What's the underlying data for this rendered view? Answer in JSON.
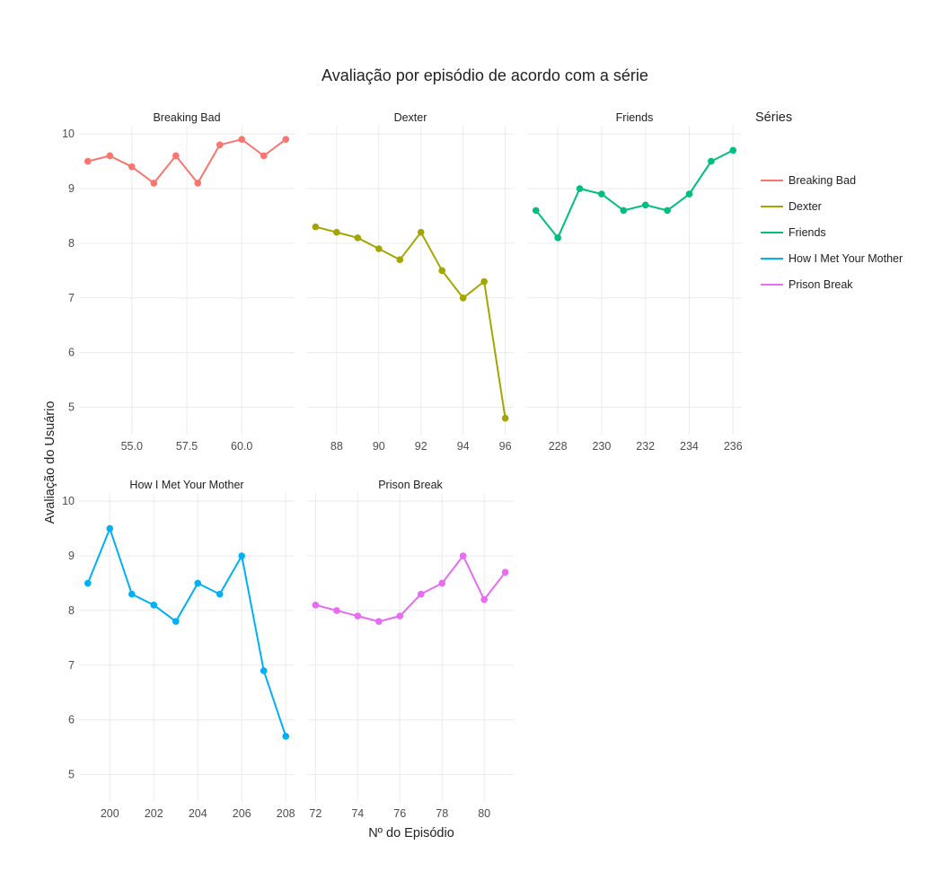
{
  "chart_data": {
    "type": "line",
    "title": "Avaliação por episódio de acordo com a série",
    "xlabel": "Nº do Episódio",
    "ylabel": "Avaliação do Usuário",
    "legend": {
      "title": "Séries",
      "position": "right"
    },
    "grid": true,
    "ylim": [
      4.5,
      10.15
    ],
    "yticks": [
      5,
      6,
      7,
      8,
      9,
      10
    ],
    "series": [
      {
        "name": "Breaking Bad",
        "color": "#F8766D",
        "x": [
          53,
          54,
          55,
          56,
          57,
          58,
          59,
          60,
          61,
          62
        ],
        "values": [
          9.5,
          9.6,
          9.4,
          9.1,
          9.6,
          9.1,
          9.8,
          9.9,
          9.6,
          9.9
        ],
        "xlim": [
          52.6,
          62.4
        ],
        "xticks": [
          55,
          57.5,
          60
        ],
        "xtick_labels": [
          "55.0",
          "57.5",
          "60.0"
        ]
      },
      {
        "name": "Dexter",
        "color": "#A3A500",
        "x": [
          87,
          88,
          89,
          90,
          91,
          92,
          93,
          94,
          95,
          96
        ],
        "values": [
          8.3,
          8.2,
          8.1,
          7.9,
          7.7,
          8.2,
          7.5,
          7.0,
          7.3,
          4.8
        ],
        "xlim": [
          86.6,
          96.4
        ],
        "xticks": [
          88,
          90,
          92,
          94,
          96
        ],
        "xtick_labels": [
          "88",
          "90",
          "92",
          "94",
          "96"
        ]
      },
      {
        "name": "Friends",
        "color": "#00BF7D",
        "x": [
          227,
          228,
          229,
          230,
          231,
          232,
          233,
          234,
          235,
          236
        ],
        "values": [
          8.6,
          8.1,
          9.0,
          8.9,
          8.6,
          8.7,
          8.6,
          8.9,
          9.5,
          9.7
        ],
        "xlim": [
          226.6,
          236.4
        ],
        "xticks": [
          228,
          230,
          232,
          234,
          236
        ],
        "xtick_labels": [
          "228",
          "230",
          "232",
          "234",
          "236"
        ]
      },
      {
        "name": "How I Met Your Mother",
        "color": "#00B0F6",
        "x": [
          199,
          200,
          201,
          202,
          203,
          204,
          205,
          206,
          207,
          208
        ],
        "values": [
          8.5,
          9.5,
          8.3,
          8.1,
          7.8,
          8.5,
          8.3,
          9.0,
          6.9,
          5.7
        ],
        "xlim": [
          198.6,
          208.4
        ],
        "xticks": [
          200,
          202,
          204,
          206,
          208
        ],
        "xtick_labels": [
          "200",
          "202",
          "204",
          "206",
          "208"
        ]
      },
      {
        "name": "Prison Break",
        "color": "#E76BF3",
        "x": [
          72,
          73,
          74,
          75,
          76,
          77,
          78,
          79,
          80,
          81
        ],
        "values": [
          8.1,
          8.0,
          7.9,
          7.8,
          7.9,
          8.3,
          8.5,
          9.0,
          8.2,
          8.7
        ],
        "xlim": [
          71.6,
          81.4
        ],
        "xticks": [
          72,
          74,
          76,
          78,
          80
        ],
        "xtick_labels": [
          "72",
          "74",
          "76",
          "78",
          "80"
        ]
      }
    ]
  }
}
